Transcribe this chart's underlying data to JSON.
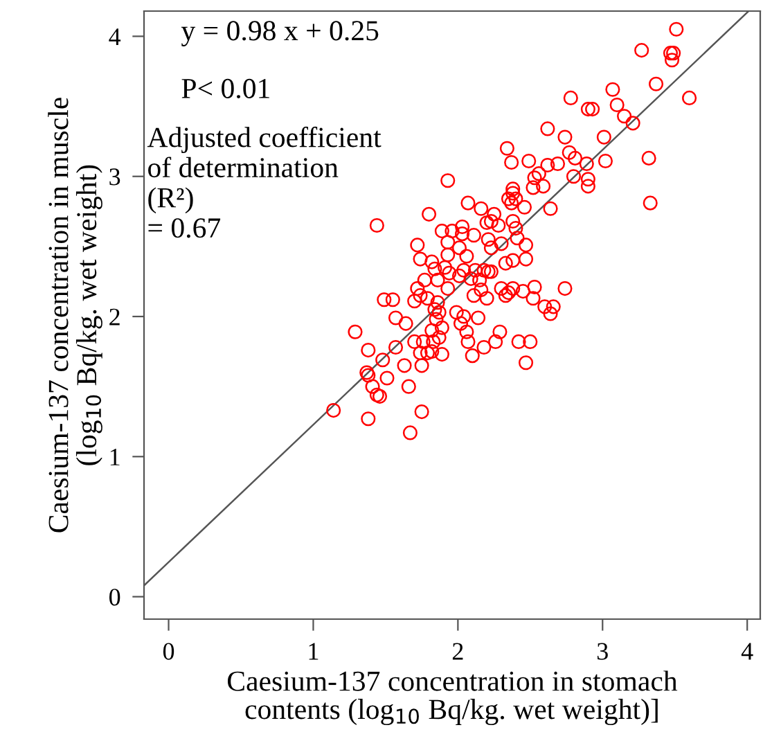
{
  "chart_data": {
    "type": "scatter",
    "xlabel": "Caesium-137 concentration in stomach\ncontents (log$_{10}$ Bq/kg. wet weight)]",
    "ylabel": "Caesium-137 concentration in muscle\n(log$_{10}$ Bq/kg. wet weight)",
    "xlim": [
      -0.17,
      4.09
    ],
    "ylim": [
      -0.16,
      4.18
    ],
    "xticks": [
      0,
      1,
      2,
      3,
      4
    ],
    "yticks": [
      0,
      1,
      2,
      3,
      4
    ],
    "grid": false,
    "annotations": [
      "y = 0.98 x + 0.25",
      "P< 0.01",
      "Adjusted coefficient\nof determination\n(R²)\n= 0.67"
    ],
    "series": [
      {
        "color": "#ff0000",
        "marker": "circle",
        "x": [
          3.51,
          3.27,
          3.47,
          3.49,
          3.48,
          3.37,
          3.6,
          3.07,
          2.78,
          3.1,
          2.9,
          2.93,
          3.15,
          3.21,
          2.62,
          2.74,
          3.01,
          2.34,
          2.77,
          2.81,
          3.32,
          2.37,
          2.49,
          2.69,
          2.62,
          2.89,
          3.02,
          2.56,
          2.53,
          2.59,
          2.52,
          2.8,
          2.9,
          2.9,
          1.93,
          2.38,
          2.38,
          2.4,
          2.35,
          2.37,
          3.33,
          2.07,
          2.16,
          2.46,
          2.64,
          1.8,
          2.25,
          2.23,
          2.28,
          2.2,
          2.38,
          2.4,
          2.41,
          1.44,
          2.03,
          1.96,
          1.89,
          2.11,
          2.03,
          1.93,
          1.93,
          2.01,
          1.72,
          2.21,
          2.23,
          2.3,
          2.47,
          2.47,
          1.74,
          1.82,
          1.84,
          2.06,
          2.04,
          2.12,
          2.18,
          2.21,
          2.33,
          2.38,
          1.91,
          1.94,
          2.23,
          2.01,
          2.09,
          2.15,
          1.86,
          1.77,
          1.93,
          1.72,
          1.74,
          1.79,
          1.7,
          2.16,
          2.2,
          2.11,
          2.3,
          2.35,
          2.38,
          2.33,
          2.45,
          2.53,
          2.52,
          2.74,
          1.49,
          1.55,
          1.86,
          1.84,
          1.87,
          1.85,
          1.89,
          1.82,
          1.87,
          1.83,
          1.89,
          1.82,
          1.99,
          2.04,
          2.02,
          2.06,
          2.07,
          2.1,
          2.14,
          1.57,
          1.64,
          2.6,
          2.64,
          2.66,
          2.29,
          1.29,
          1.7,
          1.76,
          1.79,
          1.74,
          2.18,
          2.26,
          2.42,
          2.5,
          2.47,
          1.38,
          1.48,
          1.57,
          1.63,
          1.75,
          1.37,
          1.38,
          1.51,
          1.41,
          1.44,
          1.46,
          1.66,
          1.14,
          1.75,
          1.38,
          1.67
        ],
        "values": [
          4.05,
          3.9,
          3.88,
          3.88,
          3.83,
          3.66,
          3.56,
          3.62,
          3.56,
          3.51,
          3.48,
          3.48,
          3.43,
          3.38,
          3.34,
          3.28,
          3.28,
          3.2,
          3.17,
          3.13,
          3.13,
          3.1,
          3.11,
          3.09,
          3.08,
          3.09,
          3.11,
          3.02,
          2.99,
          2.93,
          2.92,
          3.0,
          2.98,
          2.93,
          2.97,
          2.91,
          2.88,
          2.84,
          2.84,
          2.81,
          2.81,
          2.81,
          2.77,
          2.78,
          2.77,
          2.73,
          2.73,
          2.68,
          2.65,
          2.67,
          2.68,
          2.63,
          2.56,
          2.65,
          2.64,
          2.61,
          2.61,
          2.58,
          2.59,
          2.53,
          2.44,
          2.49,
          2.51,
          2.55,
          2.49,
          2.52,
          2.51,
          2.41,
          2.41,
          2.39,
          2.34,
          2.43,
          2.33,
          2.33,
          2.33,
          2.32,
          2.38,
          2.4,
          2.35,
          2.31,
          2.32,
          2.29,
          2.27,
          2.26,
          2.26,
          2.26,
          2.2,
          2.2,
          2.15,
          2.13,
          2.11,
          2.19,
          2.13,
          2.15,
          2.2,
          2.17,
          2.2,
          2.15,
          2.18,
          2.21,
          2.13,
          2.2,
          2.12,
          2.12,
          2.1,
          2.05,
          2.03,
          1.98,
          1.92,
          1.9,
          1.85,
          1.82,
          1.73,
          1.75,
          2.03,
          2.0,
          1.95,
          1.89,
          1.82,
          1.72,
          1.99,
          1.99,
          1.95,
          2.07,
          2.02,
          2.07,
          1.89,
          1.89,
          1.82,
          1.82,
          1.74,
          1.74,
          1.78,
          1.82,
          1.82,
          1.82,
          1.67,
          1.76,
          1.69,
          1.78,
          1.65,
          1.65,
          1.6,
          1.58,
          1.56,
          1.5,
          1.44,
          1.43,
          1.5,
          1.33,
          1.32,
          1.27,
          1.17
        ]
      },
      {
        "type": "line",
        "color": "#555555",
        "line_style": "solid",
        "x": [
          -0.17,
          4.01
        ],
        "values": [
          0.08,
          4.18
        ]
      }
    ]
  }
}
